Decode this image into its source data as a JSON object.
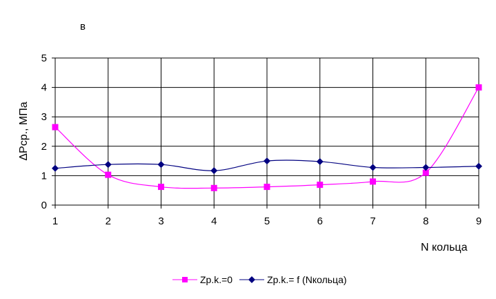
{
  "chart_data": {
    "type": "line",
    "panel_label": "в",
    "xlabel": "N кольца",
    "ylabel": "ΔPср., МПа",
    "x": [
      1,
      2,
      3,
      4,
      5,
      6,
      7,
      8,
      9
    ],
    "xlim": [
      1,
      9
    ],
    "ylim": [
      0,
      5
    ],
    "yticks": [
      0,
      1,
      2,
      3,
      4,
      5
    ],
    "grid": true,
    "smoothed": true,
    "legend_position": "bottom",
    "series": [
      {
        "name": "Zp.k.=0",
        "color": "#ff00ff",
        "marker": "square",
        "values": [
          2.65,
          1.03,
          0.62,
          0.58,
          0.62,
          0.69,
          0.8,
          1.1,
          4.0
        ]
      },
      {
        "name": "Zp.k.= f (Nкольца)",
        "color": "#000080",
        "marker": "diamond",
        "values": [
          1.25,
          1.38,
          1.38,
          1.17,
          1.5,
          1.48,
          1.28,
          1.28,
          1.32
        ]
      }
    ]
  }
}
